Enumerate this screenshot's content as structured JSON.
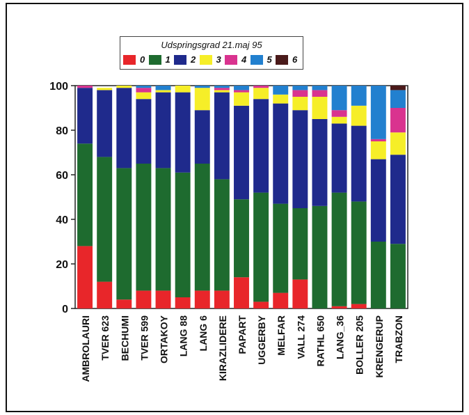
{
  "chart_data": {
    "type": "bar",
    "stacked": true,
    "title": "Udspringsgrad 21.maj 95",
    "xlabel": "",
    "ylabel": "",
    "ylim": [
      0,
      100
    ],
    "yticks": [
      0,
      20,
      40,
      60,
      80,
      100
    ],
    "legend_position": "top",
    "categories": [
      "AMBROLAURI",
      "TVER 623",
      "BECHUMI",
      "TVER 599",
      "ORTAKOY",
      "LANG 88",
      "LANG 6",
      "KIRAZLIDERE",
      "PAPART",
      "UGGERBY",
      "MELFAR",
      "VALL 274",
      "RATHL 650",
      "LANG_36",
      "BOLLER 205",
      "KRENGERUP",
      "TRABZON"
    ],
    "series": [
      {
        "name": "0",
        "color": "#e8262a",
        "values": [
          28,
          12,
          4,
          8,
          8,
          5,
          8,
          8,
          14,
          3,
          7,
          13,
          0,
          1,
          2,
          0,
          0
        ]
      },
      {
        "name": "1",
        "color": "#1e6b2f",
        "values": [
          46,
          56,
          59,
          57,
          55,
          56,
          57,
          50,
          35,
          49,
          40,
          32,
          46,
          51,
          46,
          30,
          29
        ]
      },
      {
        "name": "2",
        "color": "#1f2a8c",
        "values": [
          25,
          30,
          36,
          29,
          34,
          36,
          24,
          39,
          42,
          42,
          45,
          44,
          39,
          31,
          34,
          37,
          40
        ]
      },
      {
        "name": "3",
        "color": "#f6ee28",
        "values": [
          0,
          1,
          1,
          3,
          1,
          3,
          10,
          1,
          6,
          5,
          4,
          6,
          10,
          3,
          9,
          8,
          10
        ]
      },
      {
        "name": "4",
        "color": "#d9338f",
        "values": [
          1,
          0,
          0,
          2,
          0,
          0,
          0,
          1,
          1,
          1,
          0,
          3,
          3,
          3,
          0,
          1,
          11
        ]
      },
      {
        "name": "5",
        "color": "#2280cf",
        "values": [
          0,
          0,
          0,
          1,
          2,
          0,
          1,
          1,
          2,
          0,
          4,
          2,
          2,
          11,
          9,
          24,
          8
        ]
      },
      {
        "name": "6",
        "color": "#4a1a1a",
        "values": [
          0,
          0,
          0,
          0,
          0,
          0,
          0,
          0,
          0,
          0,
          0,
          0,
          0,
          0,
          0,
          0,
          2
        ]
      }
    ]
  }
}
